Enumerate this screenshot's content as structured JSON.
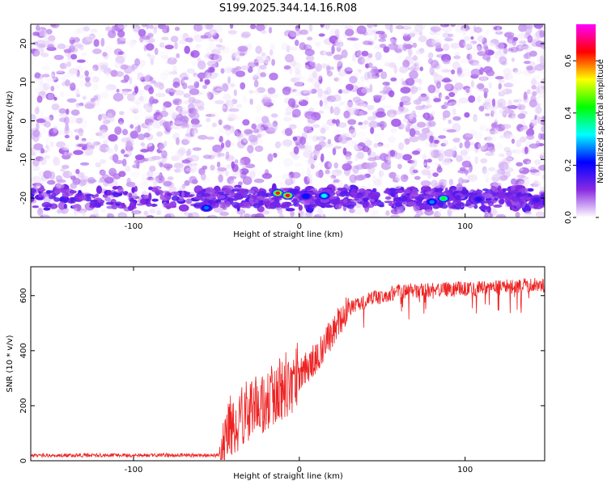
{
  "title": "S199.2025.344.14.16.R08",
  "chart_data": [
    {
      "type": "heatmap",
      "xlabel": "Height of straight line (km)",
      "ylabel": "Frequency (Hz)",
      "xlim": [
        -162,
        148
      ],
      "ylim": [
        -25,
        25
      ],
      "x_ticks": [
        -100,
        0,
        100
      ],
      "y_ticks": [
        -20,
        -10,
        0,
        10,
        20
      ],
      "colorbar": {
        "label": "Normalized spectral amplitude",
        "range": [
          0,
          0.74
        ],
        "ticks": [
          0.0,
          0.2,
          0.4,
          0.6
        ],
        "stops": [
          "#ffffff",
          "#8a2be2",
          "#0000ff",
          "#00ffff",
          "#00ff00",
          "#ffff00",
          "#ff0000",
          "#ff00ff"
        ]
      },
      "background_amplitude": [
        0.0,
        0.09
      ],
      "band_frequency_hz": -20,
      "gap_x_km": [
        -15,
        -8
      ],
      "hotspots": [
        {
          "x": -13,
          "y": -18.7,
          "amp": 0.62
        },
        {
          "x": -7,
          "y": -19.3,
          "amp": 0.66
        },
        {
          "x": 15,
          "y": -19.4,
          "amp": 0.33
        },
        {
          "x": 87,
          "y": -20.1,
          "amp": 0.42
        },
        {
          "x": 80,
          "y": -21.0,
          "amp": 0.27
        },
        {
          "x": -56,
          "y": -22.5,
          "amp": 0.26
        },
        {
          "x": 4,
          "y": -19.5,
          "amp": 0.22
        },
        {
          "x": 108,
          "y": -20.3,
          "amp": 0.18
        },
        {
          "x": 143,
          "y": -20.5,
          "amp": 0.16
        }
      ]
    },
    {
      "type": "line",
      "xlabel": "Height of straight line (km)",
      "ylabel": "SNR (10 * v/v)",
      "xlim": [
        -162,
        148
      ],
      "ylim": [
        0,
        705
      ],
      "x_ticks": [
        -100,
        0,
        100
      ],
      "y_ticks": [
        0,
        200,
        400,
        600
      ],
      "color": "#ee2222",
      "trend": [
        [
          -162,
          20
        ],
        [
          -50,
          20
        ],
        [
          -46,
          28
        ],
        [
          -44,
          70
        ],
        [
          -42,
          120
        ],
        [
          -38,
          150
        ],
        [
          -34,
          165
        ],
        [
          -30,
          175
        ],
        [
          -25,
          190
        ],
        [
          -20,
          215
        ],
        [
          -15,
          240
        ],
        [
          -10,
          265
        ],
        [
          -5,
          290
        ],
        [
          0,
          315
        ],
        [
          5,
          340
        ],
        [
          10,
          375
        ],
        [
          15,
          420
        ],
        [
          20,
          470
        ],
        [
          25,
          520
        ],
        [
          30,
          555
        ],
        [
          40,
          580
        ],
        [
          50,
          600
        ],
        [
          60,
          615
        ],
        [
          80,
          620
        ],
        [
          100,
          625
        ],
        [
          120,
          632
        ],
        [
          148,
          640
        ]
      ]
    }
  ]
}
